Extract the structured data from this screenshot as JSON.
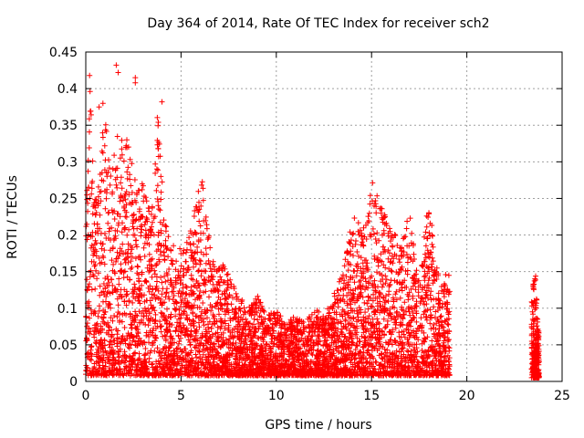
{
  "chart_data": {
    "type": "scatter",
    "title": "Day 364 of 2014, Rate Of TEC Index for receiver sch2",
    "xlabel": "GPS time / hours",
    "ylabel": "ROTI / TECUs",
    "xlim": [
      0,
      25
    ],
    "ylim": [
      0,
      0.45
    ],
    "xticks": [
      0,
      5,
      10,
      15,
      20,
      25
    ],
    "yticks": [
      0,
      0.05,
      0.1,
      0.15,
      0.2,
      0.25,
      0.3,
      0.35,
      0.4,
      0.45
    ],
    "grid": true,
    "marker": "+",
    "color": "#ff0000",
    "envelope": {
      "x": [
        0.0,
        0.2,
        0.4,
        0.6,
        0.8,
        1.0,
        1.3,
        1.6,
        1.9,
        2.1,
        2.4,
        2.7,
        3.0,
        3.4,
        3.8,
        4.2,
        4.6,
        5.0,
        5.4,
        5.8,
        6.1,
        6.5,
        6.8,
        7.2,
        7.6,
        8.0,
        8.5,
        9.0,
        9.5,
        10.0,
        10.5,
        11.0,
        11.5,
        12.0,
        12.5,
        13.0,
        13.5,
        14.0,
        14.5,
        15.0,
        15.5,
        16.0,
        16.5,
        17.0,
        17.5,
        18.0,
        18.5,
        19.0,
        19.1
      ],
      "y": [
        0.21,
        0.42,
        0.3,
        0.25,
        0.31,
        0.38,
        0.28,
        0.34,
        0.36,
        0.34,
        0.3,
        0.26,
        0.28,
        0.23,
        0.38,
        0.22,
        0.19,
        0.18,
        0.2,
        0.26,
        0.28,
        0.2,
        0.15,
        0.16,
        0.14,
        0.12,
        0.1,
        0.12,
        0.09,
        0.1,
        0.08,
        0.09,
        0.08,
        0.1,
        0.09,
        0.12,
        0.15,
        0.23,
        0.21,
        0.28,
        0.24,
        0.21,
        0.19,
        0.23,
        0.14,
        0.25,
        0.15,
        0.15,
        0.15
      ]
    },
    "segments": [
      {
        "x_start": 0.0,
        "x_end": 19.1
      },
      {
        "x_start": 23.4,
        "x_end": 23.8
      }
    ],
    "late_segment_envelope": {
      "x": [
        23.4,
        23.5,
        23.6,
        23.7,
        23.8
      ],
      "y": [
        0.11,
        0.14,
        0.15,
        0.1,
        0.06
      ]
    },
    "outliers": [
      {
        "x": 0.2,
        "y": 0.418
      },
      {
        "x": 1.6,
        "y": 0.432
      },
      {
        "x": 1.7,
        "y": 0.422
      },
      {
        "x": 2.6,
        "y": 0.415
      },
      {
        "x": 2.6,
        "y": 0.408
      },
      {
        "x": 0.7,
        "y": 0.375
      },
      {
        "x": 0.9,
        "y": 0.38
      },
      {
        "x": 4.0,
        "y": 0.382
      }
    ]
  }
}
